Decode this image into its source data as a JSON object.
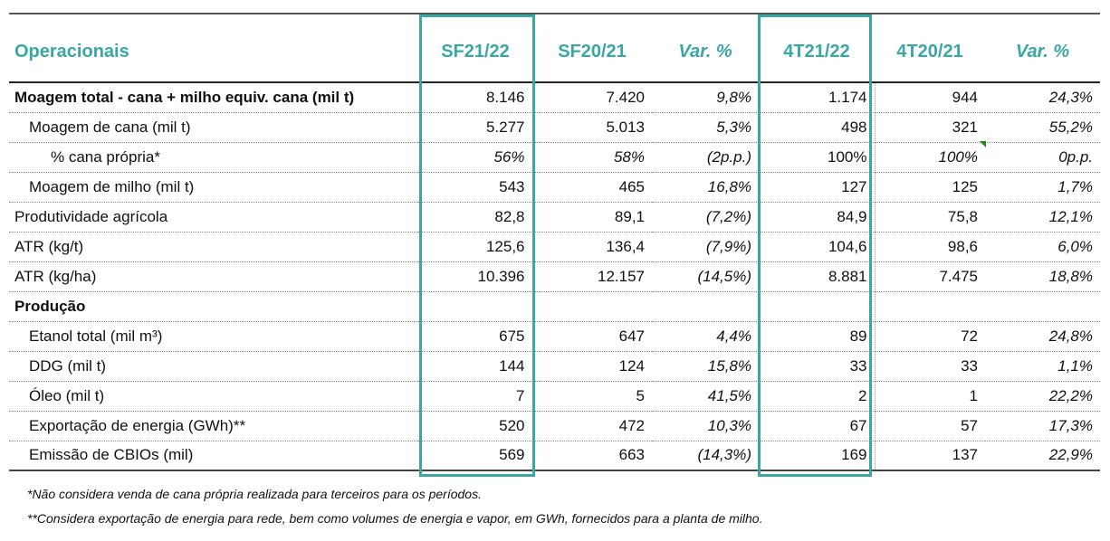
{
  "header": {
    "label": "Operacionais",
    "cols": [
      "SF21/22",
      "SF20/21",
      "Var. %",
      "4T21/22",
      "4T20/21",
      "Var. %"
    ]
  },
  "rows": [
    {
      "label": "Moagem total - cana + milho equiv. cana (mil t)",
      "bold": true,
      "level": 0,
      "italic": false,
      "values": [
        "8.146",
        "7.420",
        "9,8%",
        "1.174",
        "944",
        "24,3%"
      ]
    },
    {
      "label": "Moagem de cana (mil t)",
      "bold": false,
      "level": 1,
      "italic": false,
      "values": [
        "5.277",
        "5.013",
        "5,3%",
        "498",
        "321",
        "55,2%"
      ]
    },
    {
      "label": "% cana própria*",
      "bold": false,
      "level": 2,
      "italic": true,
      "values": [
        "56%",
        "58%",
        "(2p.p.)",
        "100%",
        "100%",
        "0p.p."
      ]
    },
    {
      "label": "Moagem de milho (mil t)",
      "bold": false,
      "level": 1,
      "italic": false,
      "values": [
        "543",
        "465",
        "16,8%",
        "127",
        "125",
        "1,7%"
      ]
    },
    {
      "label": "Produtividade agrícola",
      "bold": false,
      "level": 0,
      "italic": false,
      "values": [
        "82,8",
        "89,1",
        "(7,2%)",
        "84,9",
        "75,8",
        "12,1%"
      ]
    },
    {
      "label": "ATR (kg/t)",
      "bold": false,
      "level": 0,
      "italic": false,
      "values": [
        "125,6",
        "136,4",
        "(7,9%)",
        "104,6",
        "98,6",
        "6,0%"
      ]
    },
    {
      "label": "ATR (kg/ha)",
      "bold": false,
      "level": 0,
      "italic": false,
      "values": [
        "10.396",
        "12.157",
        "(14,5%)",
        "8.881",
        "7.475",
        "18,8%"
      ]
    },
    {
      "label": "Produção",
      "bold": true,
      "level": 0,
      "italic": false,
      "values": [
        "",
        "",
        "",
        "",
        "",
        ""
      ]
    },
    {
      "label": "Etanol total (mil m³)",
      "bold": false,
      "level": 1,
      "italic": false,
      "values": [
        "675",
        "647",
        "4,4%",
        "89",
        "72",
        "24,8%"
      ]
    },
    {
      "label": "DDG (mil t)",
      "bold": false,
      "level": 1,
      "italic": false,
      "values": [
        "144",
        "124",
        "15,8%",
        "33",
        "33",
        "1,1%"
      ]
    },
    {
      "label": "Óleo (mil t)",
      "bold": false,
      "level": 1,
      "italic": false,
      "values": [
        "7",
        "5",
        "41,5%",
        "2",
        "1",
        "22,2%"
      ]
    },
    {
      "label": "Exportação de energia (GWh)**",
      "bold": false,
      "level": 1,
      "italic": false,
      "values": [
        "520",
        "472",
        "10,3%",
        "67",
        "57",
        "17,3%"
      ]
    },
    {
      "label": "Emissão de CBIOs (mil)",
      "bold": false,
      "level": 1,
      "italic": false,
      "values": [
        "569",
        "663",
        "(14,3%)",
        "169",
        "137",
        "22,9%"
      ]
    }
  ],
  "footnotes": [
    "*Não considera venda de cana própria realizada para terceiros para os períodos.",
    "**Considera exportação de energia para rede, bem como volumes de energia e vapor, em GWh, fornecidos para a planta de milho."
  ],
  "colors": {
    "accent": "#3aa6a6",
    "comment_marker": "#1a8a1a"
  }
}
